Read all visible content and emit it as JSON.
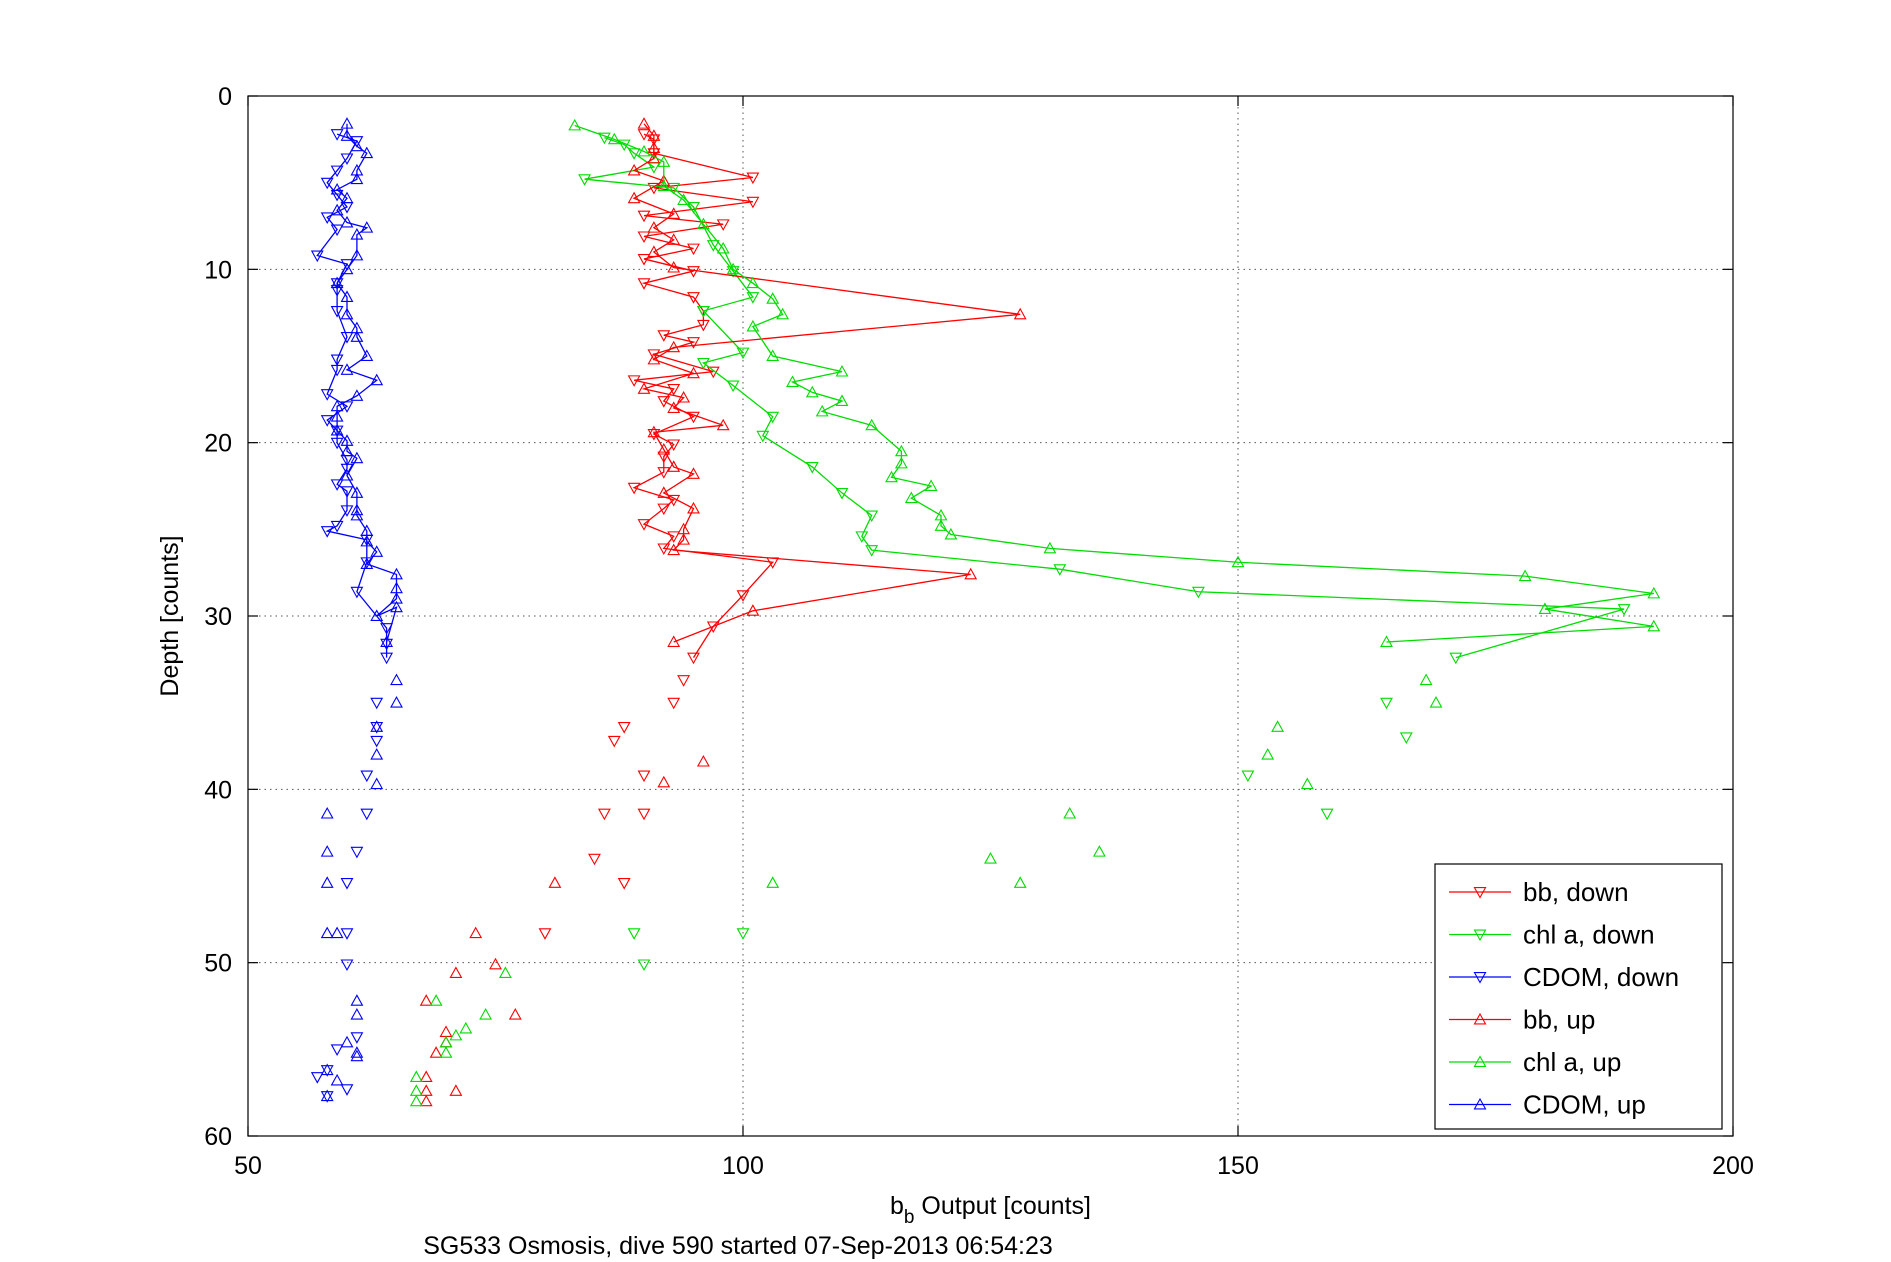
{
  "chart_data": {
    "type": "line",
    "xlabel": {
      "base": "b",
      "sub": "b",
      "rest": " Output [counts]"
    },
    "ylabel": "Depth [counts]",
    "caption": "SG533 Osmosis, dive 590 started 07-Sep-2013 06:54:23",
    "xlim": [
      50,
      200
    ],
    "ylim": [
      0,
      60
    ],
    "y_reversed": true,
    "xticks": [
      50,
      100,
      150,
      200
    ],
    "yticks": [
      0,
      10,
      20,
      30,
      40,
      50,
      60
    ],
    "grid": true,
    "legend_position": "bottom-right",
    "series": [
      {
        "name": "bb, down",
        "color": "#ff0000",
        "marker": "triangle-down",
        "connected": true,
        "points": [
          [
            90,
            2.2
          ],
          [
            91,
            2.5
          ],
          [
            91,
            3.3
          ],
          [
            101,
            4.7
          ],
          [
            91,
            5.3
          ],
          [
            101,
            6.1
          ],
          [
            90,
            6.9
          ],
          [
            98,
            7.4
          ],
          [
            90,
            8.1
          ],
          [
            95,
            8.8
          ],
          [
            90,
            9.4
          ],
          [
            95,
            10.1
          ],
          [
            90,
            10.8
          ],
          [
            95,
            11.6
          ],
          [
            96,
            12.4
          ],
          [
            96,
            13.2
          ],
          [
            92,
            13.8
          ],
          [
            95,
            14.2
          ],
          [
            91,
            14.9
          ],
          [
            97,
            15.9
          ],
          [
            89,
            16.4
          ],
          [
            93,
            16.9
          ],
          [
            92,
            17.6
          ],
          [
            95,
            18.5
          ],
          [
            91,
            19.5
          ],
          [
            93,
            20.1
          ],
          [
            92,
            20.8
          ],
          [
            92,
            21.7
          ],
          [
            89,
            22.6
          ],
          [
            93,
            23.3
          ],
          [
            92,
            23.8
          ],
          [
            90,
            24.7
          ],
          [
            93,
            25.4
          ],
          [
            92,
            26.1
          ],
          [
            103,
            26.9
          ],
          [
            100,
            28.8
          ],
          [
            97,
            30.6
          ],
          [
            95,
            32.4
          ],
          [
            94,
            33.7
          ],
          [
            93,
            35.0
          ],
          [
            88,
            36.4
          ],
          [
            87,
            37.2
          ],
          [
            90,
            39.2
          ],
          [
            86,
            41.4
          ],
          [
            85,
            44.0
          ],
          [
            80,
            48.3
          ],
          [
            88,
            45.4
          ],
          [
            90,
            41.4
          ]
        ]
      },
      {
        "name": "chl a, down",
        "color": "#00dd00",
        "marker": "triangle-down",
        "connected": true,
        "points": [
          [
            86,
            2.4
          ],
          [
            88,
            2.8
          ],
          [
            89,
            3.3
          ],
          [
            91,
            4.1
          ],
          [
            84,
            4.8
          ],
          [
            93,
            5.3
          ],
          [
            95,
            6.4
          ],
          [
            97,
            8.6
          ],
          [
            99,
            10.1
          ],
          [
            101,
            11.6
          ],
          [
            96,
            12.4
          ],
          [
            100,
            14.8
          ],
          [
            96,
            15.4
          ],
          [
            99,
            16.7
          ],
          [
            103,
            18.5
          ],
          [
            102,
            19.6
          ],
          [
            107,
            21.4
          ],
          [
            110,
            22.9
          ],
          [
            113,
            24.2
          ],
          [
            112,
            25.4
          ],
          [
            113,
            26.2
          ],
          [
            132,
            27.3
          ],
          [
            146,
            28.6
          ],
          [
            189,
            29.6
          ],
          [
            172,
            32.4
          ],
          [
            167,
            37.0
          ],
          [
            165,
            35.0
          ],
          [
            151,
            39.2
          ],
          [
            159,
            41.4
          ],
          [
            100,
            48.3
          ],
          [
            89,
            48.3
          ],
          [
            90,
            50.1
          ]
        ]
      },
      {
        "name": "CDOM, down",
        "color": "#0000ff",
        "marker": "triangle-down",
        "connected": true,
        "points": [
          [
            59,
            2.2
          ],
          [
            61,
            2.6
          ],
          [
            60,
            3.6
          ],
          [
            59,
            4.3
          ],
          [
            58,
            5.0
          ],
          [
            59,
            5.7
          ],
          [
            60,
            6.4
          ],
          [
            58,
            7.0
          ],
          [
            59,
            7.7
          ],
          [
            57,
            9.2
          ],
          [
            60,
            9.7
          ],
          [
            59,
            10.8
          ],
          [
            59,
            11.2
          ],
          [
            59,
            12.4
          ],
          [
            60,
            13.9
          ],
          [
            59,
            15.2
          ],
          [
            59,
            15.8
          ],
          [
            58,
            17.2
          ],
          [
            60,
            17.9
          ],
          [
            58,
            18.7
          ],
          [
            59,
            19.3
          ],
          [
            59,
            20.0
          ],
          [
            60,
            21.0
          ],
          [
            60,
            21.5
          ],
          [
            59,
            22.4
          ],
          [
            60,
            22.8
          ],
          [
            60,
            23.9
          ],
          [
            59,
            24.8
          ],
          [
            58,
            25.1
          ],
          [
            62,
            25.6
          ],
          [
            62,
            26.9
          ],
          [
            61,
            28.6
          ],
          [
            64,
            30.7
          ],
          [
            64,
            31.6
          ],
          [
            64,
            32.4
          ],
          [
            63,
            35.0
          ],
          [
            63,
            36.4
          ],
          [
            63,
            37.2
          ],
          [
            62,
            39.2
          ],
          [
            62,
            41.4
          ],
          [
            61,
            43.6
          ],
          [
            60,
            45.4
          ],
          [
            60,
            48.3
          ],
          [
            60,
            50.1
          ],
          [
            61,
            54.3
          ],
          [
            59,
            55.0
          ],
          [
            60,
            57.3
          ],
          [
            58,
            56.2
          ],
          [
            57,
            56.6
          ],
          [
            58,
            57.7
          ]
        ]
      },
      {
        "name": "bb, up",
        "color": "#ff0000",
        "marker": "triangle-up",
        "connected": true,
        "points": [
          [
            90,
            1.6
          ],
          [
            91,
            2.3
          ],
          [
            91,
            3.0
          ],
          [
            91,
            3.6
          ],
          [
            89,
            4.3
          ],
          [
            92,
            4.9
          ],
          [
            89,
            5.9
          ],
          [
            93,
            6.8
          ],
          [
            91,
            7.6
          ],
          [
            93,
            8.3
          ],
          [
            91,
            9.0
          ],
          [
            93,
            9.9
          ],
          [
            128,
            12.6
          ],
          [
            93,
            14.5
          ],
          [
            91,
            15.2
          ],
          [
            95,
            16.0
          ],
          [
            90,
            16.9
          ],
          [
            94,
            17.4
          ],
          [
            93,
            18.0
          ],
          [
            98,
            19.0
          ],
          [
            91,
            19.4
          ],
          [
            92,
            20.4
          ],
          [
            93,
            21.4
          ],
          [
            95,
            21.8
          ],
          [
            92,
            22.9
          ],
          [
            95,
            23.8
          ],
          [
            94,
            25.0
          ],
          [
            94,
            25.6
          ],
          [
            93,
            26.2
          ],
          [
            123,
            27.6
          ],
          [
            101,
            29.7
          ],
          [
            93,
            31.5
          ],
          [
            96,
            38.4
          ],
          [
            92,
            39.6
          ],
          [
            81,
            45.4
          ],
          [
            73,
            48.3
          ],
          [
            71,
            50.6
          ],
          [
            75,
            50.1
          ],
          [
            77,
            53.0
          ],
          [
            68,
            52.2
          ],
          [
            70,
            54.0
          ],
          [
            70,
            54.6
          ],
          [
            69,
            55.2
          ],
          [
            68,
            56.6
          ],
          [
            68,
            57.4
          ],
          [
            71,
            57.4
          ],
          [
            68,
            58.0
          ]
        ]
      },
      {
        "name": "chl a, up",
        "color": "#00dd00",
        "marker": "triangle-up",
        "connected": true,
        "points": [
          [
            83,
            1.7
          ],
          [
            87,
            2.5
          ],
          [
            90,
            3.2
          ],
          [
            92,
            3.8
          ],
          [
            92,
            5.2
          ],
          [
            94,
            6.0
          ],
          [
            96,
            7.4
          ],
          [
            98,
            8.8
          ],
          [
            99,
            10.0
          ],
          [
            101,
            10.8
          ],
          [
            103,
            11.7
          ],
          [
            104,
            12.6
          ],
          [
            101,
            13.3
          ],
          [
            103,
            15.0
          ],
          [
            110,
            15.9
          ],
          [
            105,
            16.5
          ],
          [
            107,
            17.1
          ],
          [
            110,
            17.6
          ],
          [
            108,
            18.2
          ],
          [
            113,
            19.0
          ],
          [
            116,
            20.5
          ],
          [
            116,
            21.2
          ],
          [
            115,
            22.0
          ],
          [
            119,
            22.5
          ],
          [
            117,
            23.2
          ],
          [
            120,
            24.2
          ],
          [
            120,
            24.8
          ],
          [
            121,
            25.3
          ],
          [
            131,
            26.1
          ],
          [
            150,
            26.9
          ],
          [
            179,
            27.7
          ],
          [
            192,
            28.7
          ],
          [
            181,
            29.6
          ],
          [
            192,
            30.6
          ],
          [
            165,
            31.5
          ],
          [
            169,
            33.7
          ],
          [
            170,
            35.0
          ],
          [
            154,
            36.4
          ],
          [
            153,
            38.0
          ],
          [
            157,
            39.7
          ],
          [
            133,
            41.4
          ],
          [
            136,
            43.6
          ],
          [
            125,
            44.0
          ],
          [
            128,
            45.4
          ],
          [
            103,
            45.4
          ],
          [
            76,
            50.6
          ],
          [
            74,
            53.0
          ],
          [
            72,
            53.8
          ],
          [
            71,
            54.2
          ],
          [
            70,
            54.6
          ],
          [
            69,
            52.2
          ],
          [
            70,
            55.2
          ],
          [
            67,
            56.6
          ],
          [
            67,
            57.4
          ],
          [
            67,
            58.0
          ]
        ]
      },
      {
        "name": "CDOM, up",
        "color": "#0000ff",
        "marker": "triangle-up",
        "connected": true,
        "points": [
          [
            60,
            1.6
          ],
          [
            60,
            2.3
          ],
          [
            61,
            2.9
          ],
          [
            62,
            3.3
          ],
          [
            61,
            4.3
          ],
          [
            61,
            4.8
          ],
          [
            59,
            5.4
          ],
          [
            60,
            5.9
          ],
          [
            59,
            6.6
          ],
          [
            60,
            7.3
          ],
          [
            62,
            7.6
          ],
          [
            61,
            8.0
          ],
          [
            61,
            9.2
          ],
          [
            60,
            10.0
          ],
          [
            59,
            10.8
          ],
          [
            60,
            11.6
          ],
          [
            60,
            12.6
          ],
          [
            61,
            13.4
          ],
          [
            61,
            13.9
          ],
          [
            62,
            15.0
          ],
          [
            60,
            15.8
          ],
          [
            63,
            16.4
          ],
          [
            61,
            17.3
          ],
          [
            59,
            17.9
          ],
          [
            59,
            18.5
          ],
          [
            59,
            19.3
          ],
          [
            60,
            19.9
          ],
          [
            60,
            20.5
          ],
          [
            61,
            20.9
          ],
          [
            60,
            21.9
          ],
          [
            61,
            22.9
          ],
          [
            61,
            23.9
          ],
          [
            61,
            24.2
          ],
          [
            62,
            25.1
          ],
          [
            62,
            25.7
          ],
          [
            63,
            26.3
          ],
          [
            62,
            27.0
          ],
          [
            65,
            27.6
          ],
          [
            65,
            28.4
          ],
          [
            65,
            29.0
          ],
          [
            63,
            30.0
          ],
          [
            65,
            29.5
          ],
          [
            64,
            31.5
          ],
          [
            65,
            33.7
          ],
          [
            65,
            35.0
          ],
          [
            63,
            36.4
          ],
          [
            63,
            38.0
          ],
          [
            63,
            39.7
          ],
          [
            58,
            41.4
          ],
          [
            58,
            43.6
          ],
          [
            58,
            45.4
          ],
          [
            58,
            48.3
          ],
          [
            59,
            48.3
          ],
          [
            61,
            52.2
          ],
          [
            61,
            53.0
          ],
          [
            60,
            54.6
          ],
          [
            61,
            55.2
          ],
          [
            61,
            55.4
          ],
          [
            58,
            56.2
          ],
          [
            59,
            56.8
          ],
          [
            58,
            57.7
          ]
        ]
      }
    ]
  }
}
